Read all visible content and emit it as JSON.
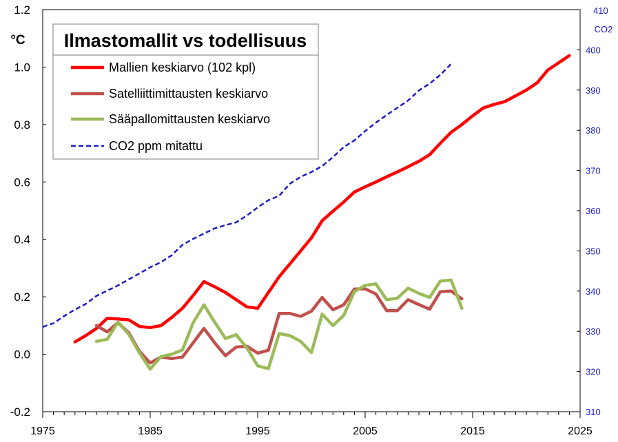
{
  "chart_data": {
    "type": "line",
    "title": "Ilmastomallit vs todellisuus",
    "ylabel": "°C",
    "y2label": "CO2",
    "xlim": [
      1975,
      2025
    ],
    "ylim": [
      -0.2,
      1.2
    ],
    "y2lim": [
      310,
      410
    ],
    "xticks": [
      "1975",
      "1985",
      "1995",
      "2005",
      "2015",
      "2025"
    ],
    "xtick_values": [
      1975,
      1985,
      1995,
      2005,
      2015,
      2025
    ],
    "yticks": [
      "-0.2",
      "0.0",
      "0.2",
      "0.4",
      "0.6",
      "0.8",
      "1.0",
      "1.2"
    ],
    "ytick_values": [
      -0.2,
      0.0,
      0.2,
      0.4,
      0.6,
      0.8,
      1.0,
      1.2
    ],
    "y2ticks": [
      "310",
      "320",
      "330",
      "340",
      "350",
      "360",
      "370",
      "380",
      "390",
      "400",
      "410"
    ],
    "y2tick_values": [
      310,
      320,
      330,
      340,
      350,
      360,
      370,
      380,
      390,
      400,
      410
    ],
    "grid": false,
    "legend_position": "top-left",
    "series": [
      {
        "name": "Mallien keskiarvo (102 kpl)",
        "color": "#ff0000",
        "axis": "left",
        "style": "solid",
        "x": [
          1978,
          1979,
          1980,
          1981,
          1982,
          1983,
          1984,
          1985,
          1986,
          1987,
          1988,
          1989,
          1990,
          1991,
          1992,
          1993,
          1994,
          1995,
          1996,
          1997,
          1998,
          1999,
          2000,
          2001,
          2002,
          2003,
          2004,
          2005,
          2006,
          2007,
          2008,
          2009,
          2010,
          2011,
          2012,
          2013,
          2014,
          2015,
          2016,
          2017,
          2018,
          2019,
          2020,
          2021,
          2022,
          2023,
          2024
        ],
        "y": [
          0.043,
          0.065,
          0.09,
          0.125,
          0.123,
          0.12,
          0.097,
          0.093,
          0.1,
          0.128,
          0.16,
          0.205,
          0.253,
          0.235,
          0.215,
          0.19,
          0.165,
          0.16,
          0.215,
          0.27,
          0.315,
          0.36,
          0.405,
          0.465,
          0.498,
          0.53,
          0.565,
          0.583,
          0.6,
          0.618,
          0.635,
          0.653,
          0.672,
          0.695,
          0.735,
          0.773,
          0.8,
          0.83,
          0.858,
          0.87,
          0.88,
          0.9,
          0.92,
          0.945,
          0.99,
          1.015,
          1.04
        ]
      },
      {
        "name": "Satelliittimittausten keskiarvo",
        "color": "#c0504d",
        "axis": "left",
        "style": "solid",
        "x": [
          1980,
          1981,
          1982,
          1983,
          1984,
          1985,
          1986,
          1987,
          1988,
          1989,
          1990,
          1991,
          1992,
          1993,
          1994,
          1995,
          1996,
          1997,
          1998,
          1999,
          2000,
          2001,
          2002,
          2003,
          2004,
          2005,
          2006,
          2007,
          2008,
          2009,
          2010,
          2011,
          2012,
          2013,
          2014
        ],
        "y": [
          0.1,
          0.078,
          0.11,
          0.075,
          0.01,
          -0.03,
          -0.01,
          -0.015,
          -0.01,
          0.04,
          0.09,
          0.04,
          -0.005,
          0.025,
          0.028,
          0.004,
          0.014,
          0.142,
          0.142,
          0.132,
          0.15,
          0.198,
          0.155,
          0.172,
          0.227,
          0.228,
          0.21,
          0.152,
          0.152,
          0.19,
          0.173,
          0.157,
          0.218,
          0.22,
          0.193
        ]
      },
      {
        "name": "Sääpallomittausten keskiarvo",
        "color": "#9bbb59",
        "axis": "left",
        "style": "solid",
        "x": [
          1980,
          1981,
          1982,
          1983,
          1984,
          1985,
          1986,
          1987,
          1988,
          1989,
          1990,
          1991,
          1992,
          1993,
          1994,
          1995,
          1996,
          1997,
          1998,
          1999,
          2000,
          2001,
          2002,
          2003,
          2004,
          2005,
          2006,
          2007,
          2008,
          2009,
          2010,
          2011,
          2012,
          2013,
          2014
        ],
        "y": [
          0.045,
          0.052,
          0.112,
          0.07,
          0.005,
          -0.052,
          -0.008,
          0.0,
          0.015,
          0.11,
          0.172,
          0.112,
          0.055,
          0.068,
          0.022,
          -0.04,
          -0.05,
          0.072,
          0.065,
          0.045,
          0.006,
          0.14,
          0.1,
          0.135,
          0.218,
          0.24,
          0.245,
          0.19,
          0.195,
          0.23,
          0.212,
          0.198,
          0.255,
          0.258,
          0.16
        ]
      },
      {
        "name": "CO2 ppm mitattu",
        "color": "#1a1acc",
        "axis": "right",
        "style": "dashed",
        "x": [
          1975,
          1976,
          1977,
          1978,
          1979,
          1980,
          1981,
          1982,
          1983,
          1984,
          1985,
          1986,
          1987,
          1988,
          1989,
          1990,
          1991,
          1992,
          1993,
          1994,
          1995,
          1996,
          1997,
          1998,
          1999,
          2000,
          2001,
          2002,
          2003,
          2004,
          2005,
          2006,
          2007,
          2008,
          2009,
          2010,
          2011,
          2012,
          2013
        ],
        "y": [
          331.1,
          332.0,
          333.8,
          335.4,
          336.8,
          338.8,
          340.1,
          341.4,
          342.9,
          344.4,
          345.9,
          347.2,
          348.9,
          351.5,
          353.0,
          354.3,
          355.6,
          356.4,
          357.1,
          358.8,
          360.8,
          362.6,
          363.7,
          366.7,
          368.4,
          369.6,
          371.1,
          373.3,
          375.8,
          377.5,
          379.8,
          381.9,
          383.8,
          385.6,
          387.4,
          389.9,
          391.6,
          393.8,
          396.5
        ]
      }
    ]
  }
}
